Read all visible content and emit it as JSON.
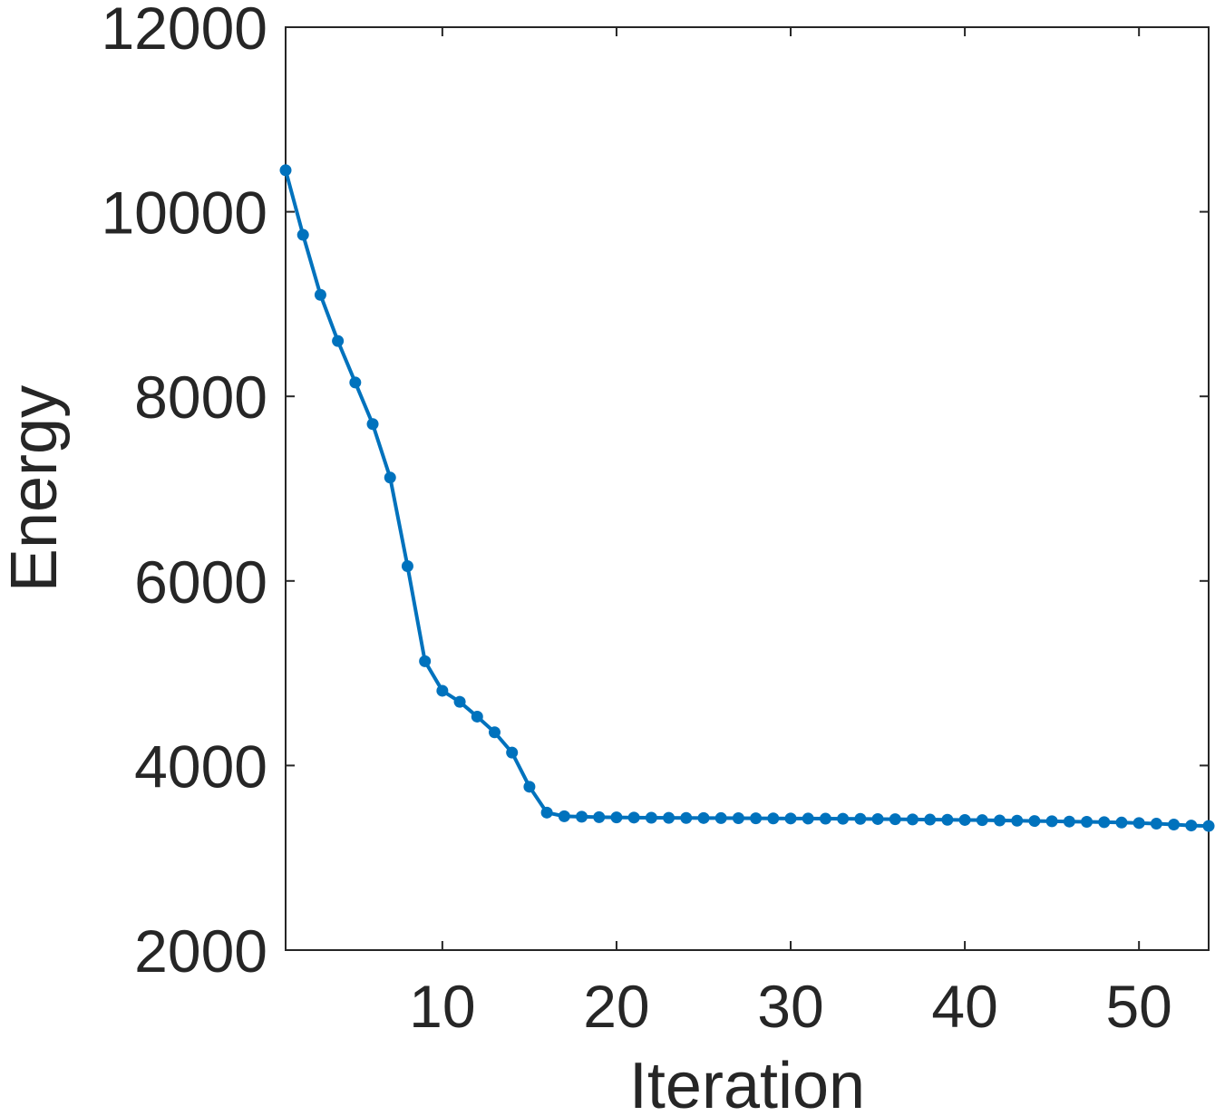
{
  "chart_data": {
    "type": "line",
    "title": "",
    "xlabel": "Iteration",
    "ylabel": "Energy",
    "xlim": [
      1,
      54
    ],
    "ylim": [
      2000,
      12000
    ],
    "xticks": [
      10,
      20,
      30,
      40,
      50
    ],
    "yticks": [
      2000,
      4000,
      6000,
      8000,
      10000,
      12000
    ],
    "grid": false,
    "legend": "none",
    "series": [
      {
        "color": "#0072BD",
        "marker": "dot",
        "x": [
          1,
          2,
          3,
          4,
          5,
          6,
          7,
          8,
          9,
          10,
          11,
          12,
          13,
          14,
          15,
          16,
          17,
          18,
          19,
          20,
          21,
          22,
          23,
          24,
          25,
          26,
          27,
          28,
          29,
          30,
          31,
          32,
          33,
          34,
          35,
          36,
          37,
          38,
          39,
          40,
          41,
          42,
          43,
          44,
          45,
          46,
          47,
          48,
          49,
          50,
          51,
          52,
          53,
          54
        ],
        "values": [
          10450,
          9750,
          9100,
          8600,
          8150,
          7700,
          7120,
          6160,
          5130,
          4810,
          4690,
          4530,
          4360,
          4140,
          3770,
          3490,
          3450,
          3445,
          3440,
          3438,
          3436,
          3434,
          3433,
          3432,
          3431,
          3430,
          3429,
          3428,
          3427,
          3426,
          3425,
          3424,
          3423,
          3422,
          3420,
          3418,
          3416,
          3414,
          3412,
          3410,
          3408,
          3405,
          3402,
          3399,
          3396,
          3393,
          3390,
          3386,
          3382,
          3377,
          3370,
          3360,
          3350,
          3345
        ]
      }
    ]
  }
}
